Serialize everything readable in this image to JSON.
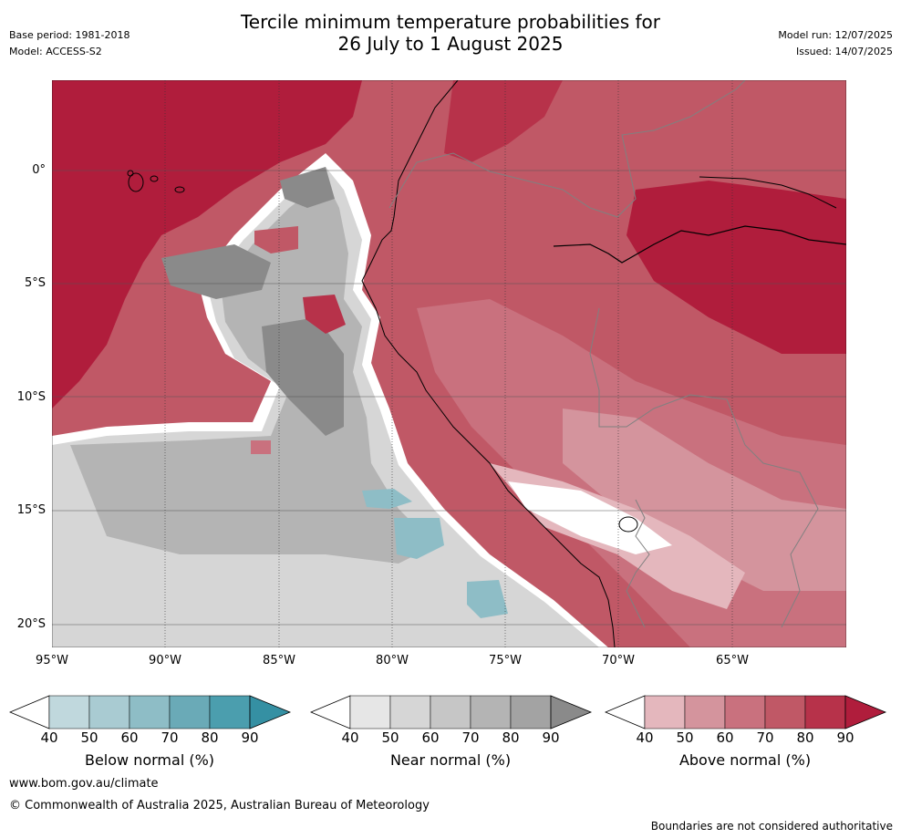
{
  "header": {
    "title_line1": "Tercile minimum temperature probabilities for",
    "title_line2": "26 July to 1 August 2025",
    "base_period": "Base period: 1981-2018",
    "model": "Model: ACCESS-S2",
    "model_run": "Model run: 12/07/2025",
    "issued": "Issued: 14/07/2025"
  },
  "map": {
    "lat_ticks": [
      "0°",
      "5°S",
      "10°S",
      "15°S",
      "20°S"
    ],
    "lon_ticks": [
      "95°W",
      "90°W",
      "85°W",
      "80°W",
      "75°W",
      "70°W",
      "65°W"
    ]
  },
  "colorbars": [
    {
      "label": "Below normal (%)",
      "ticks": [
        "40",
        "50",
        "60",
        "70",
        "80",
        "90"
      ],
      "colors": [
        "#c0d8dd",
        "#a9cbd2",
        "#8ebdc6",
        "#6aaab7",
        "#4b9eae",
        "#3590a3"
      ]
    },
    {
      "label": "Near normal (%)",
      "ticks": [
        "40",
        "50",
        "60",
        "70",
        "80",
        "90"
      ],
      "colors": [
        "#e6e6e6",
        "#d6d6d6",
        "#c6c6c6",
        "#b4b4b4",
        "#a3a3a3",
        "#8a8a8a"
      ]
    },
    {
      "label": "Above normal (%)",
      "ticks": [
        "40",
        "50",
        "60",
        "70",
        "80",
        "90"
      ],
      "colors": [
        "#e4b7bd",
        "#d4949d",
        "#c9717e",
        "#c05866",
        "#b7324a",
        "#b01d3c"
      ]
    }
  ],
  "footer": {
    "url": "www.bom.gov.au/climate",
    "copyright": "© Commonwealth of Australia 2025, Australian Bureau of Meteorology",
    "disclaimer": "Boundaries are not considered authoritative"
  }
}
